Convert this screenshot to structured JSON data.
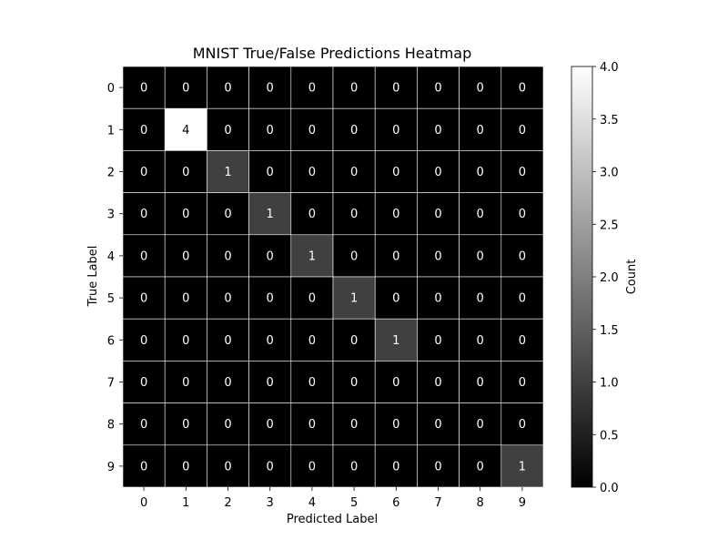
{
  "chart_data": {
    "type": "heatmap",
    "title": "MNIST True/False Predictions Heatmap",
    "xlabel": "Predicted Label",
    "ylabel": "True Label",
    "x_categories": [
      "0",
      "1",
      "2",
      "3",
      "4",
      "5",
      "6",
      "7",
      "8",
      "9"
    ],
    "y_categories": [
      "0",
      "1",
      "2",
      "3",
      "4",
      "5",
      "6",
      "7",
      "8",
      "9"
    ],
    "values": [
      [
        0,
        0,
        0,
        0,
        0,
        0,
        0,
        0,
        0,
        0
      ],
      [
        0,
        4,
        0,
        0,
        0,
        0,
        0,
        0,
        0,
        0
      ],
      [
        0,
        0,
        1,
        0,
        0,
        0,
        0,
        0,
        0,
        0
      ],
      [
        0,
        0,
        0,
        1,
        0,
        0,
        0,
        0,
        0,
        0
      ],
      [
        0,
        0,
        0,
        0,
        1,
        0,
        0,
        0,
        0,
        0
      ],
      [
        0,
        0,
        0,
        0,
        0,
        1,
        0,
        0,
        0,
        0
      ],
      [
        0,
        0,
        0,
        0,
        0,
        0,
        1,
        0,
        0,
        0
      ],
      [
        0,
        0,
        0,
        0,
        0,
        0,
        0,
        0,
        0,
        0
      ],
      [
        0,
        0,
        0,
        0,
        0,
        0,
        0,
        0,
        0,
        0
      ],
      [
        0,
        0,
        0,
        0,
        0,
        0,
        0,
        0,
        0,
        1
      ]
    ],
    "colormap": "gray",
    "colorbar": {
      "label": "Count",
      "min": 0.0,
      "max": 4.0,
      "ticks": [
        "0.0",
        "0.5",
        "1.0",
        "1.5",
        "2.0",
        "2.5",
        "3.0",
        "3.5",
        "4.0"
      ]
    },
    "grid_line_color": "#ffffff",
    "annotation_color": "#ffffff"
  }
}
